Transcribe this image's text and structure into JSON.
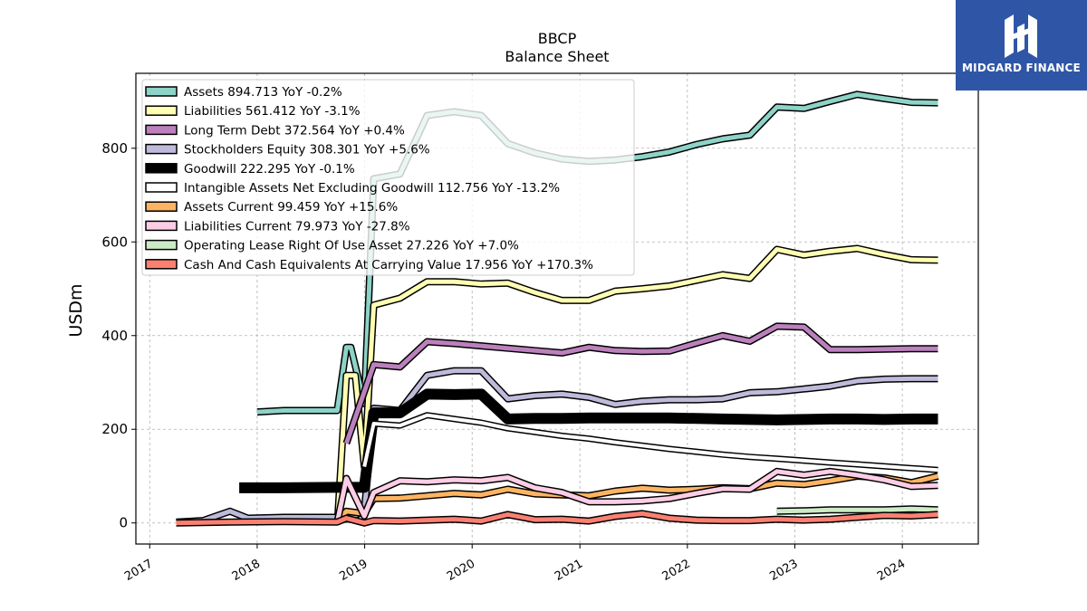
{
  "brand": {
    "name": "MIDGARD FINANCE",
    "bg_color": "#2f56a6"
  },
  "chart_data": {
    "type": "line",
    "title": "BBCP",
    "subtitle": "Balance  Sheet",
    "xlabel": "",
    "ylabel": "USDm",
    "xlim": [
      "2016-11-15",
      "2024-09-15"
    ],
    "ylim": [
      -45,
      960
    ],
    "yticks": [
      0,
      200,
      400,
      600,
      800
    ],
    "xticks": [
      "2017",
      "2018",
      "2019",
      "2020",
      "2021",
      "2022",
      "2023",
      "2024"
    ],
    "grid": true,
    "legend_position": "top-left",
    "series": [
      {
        "name": "Assets",
        "legend": "Assets  894.713 YoY -0.2%",
        "color": "#8dd3c7",
        "width": 5,
        "points": [
          [
            "2018-01-01",
            237
          ],
          [
            "2018-04-01",
            240
          ],
          [
            "2018-07-01",
            240
          ],
          [
            "2018-09-30",
            240
          ],
          [
            "2018-10-31",
            375
          ],
          [
            "2018-11-15",
            375
          ],
          [
            "2018-12-31",
            255
          ],
          [
            "2019-02-01",
            735
          ],
          [
            "2019-05-01",
            745
          ],
          [
            "2019-08-01",
            870
          ],
          [
            "2019-11-01",
            878
          ],
          [
            "2020-02-01",
            870
          ],
          [
            "2020-05-01",
            810
          ],
          [
            "2020-08-01",
            790
          ],
          [
            "2020-11-01",
            777
          ],
          [
            "2021-02-01",
            772
          ],
          [
            "2021-05-01",
            775
          ],
          [
            "2021-08-01",
            782
          ],
          [
            "2021-11-01",
            792
          ],
          [
            "2022-02-01",
            808
          ],
          [
            "2022-05-01",
            820
          ],
          [
            "2022-08-01",
            828
          ],
          [
            "2022-11-01",
            888
          ],
          [
            "2023-02-01",
            885
          ],
          [
            "2023-05-01",
            900
          ],
          [
            "2023-08-01",
            915
          ],
          [
            "2023-11-01",
            906
          ],
          [
            "2024-02-01",
            898
          ],
          [
            "2024-05-01",
            897
          ]
        ]
      },
      {
        "name": "Liabilities",
        "legend": "Liabilities  561.412 YoY -3.1%",
        "color": "#ffffb3",
        "width": 5,
        "points": [
          [
            "2018-10-01",
            5
          ],
          [
            "2018-10-31",
            315
          ],
          [
            "2018-11-30",
            315
          ],
          [
            "2018-12-31",
            120
          ],
          [
            "2019-02-01",
            465
          ],
          [
            "2019-05-01",
            480
          ],
          [
            "2019-08-01",
            515
          ],
          [
            "2019-11-01",
            515
          ],
          [
            "2020-02-01",
            510
          ],
          [
            "2020-05-01",
            512
          ],
          [
            "2020-08-01",
            492
          ],
          [
            "2020-11-01",
            475
          ],
          [
            "2021-02-01",
            475
          ],
          [
            "2021-05-01",
            495
          ],
          [
            "2021-08-01",
            500
          ],
          [
            "2021-11-01",
            506
          ],
          [
            "2022-02-01",
            518
          ],
          [
            "2022-05-01",
            530
          ],
          [
            "2022-08-01",
            522
          ],
          [
            "2022-11-01",
            584
          ],
          [
            "2023-02-01",
            572
          ],
          [
            "2023-05-01",
            580
          ],
          [
            "2023-08-01",
            586
          ],
          [
            "2023-11-01",
            573
          ],
          [
            "2024-02-01",
            562
          ],
          [
            "2024-05-01",
            561
          ]
        ]
      },
      {
        "name": "Long Term Debt",
        "legend": "Long Term Debt  372.564 YoY +0.4%",
        "color": "#bc80bd",
        "width": 5,
        "points": [
          [
            "2018-10-31",
            170
          ],
          [
            "2019-02-01",
            338
          ],
          [
            "2019-05-01",
            333
          ],
          [
            "2019-08-01",
            387
          ],
          [
            "2019-11-01",
            383
          ],
          [
            "2020-02-01",
            378
          ],
          [
            "2020-05-01",
            373
          ],
          [
            "2020-08-01",
            368
          ],
          [
            "2020-11-01",
            363
          ],
          [
            "2021-02-01",
            375
          ],
          [
            "2021-05-01",
            368
          ],
          [
            "2021-08-01",
            366
          ],
          [
            "2021-11-01",
            367
          ],
          [
            "2022-02-01",
            384
          ],
          [
            "2022-05-01",
            400
          ],
          [
            "2022-08-01",
            388
          ],
          [
            "2022-11-01",
            420
          ],
          [
            "2023-02-01",
            418
          ],
          [
            "2023-05-01",
            370
          ],
          [
            "2023-08-01",
            370
          ],
          [
            "2023-11-01",
            371
          ],
          [
            "2024-02-01",
            372
          ],
          [
            "2024-05-01",
            372
          ]
        ]
      },
      {
        "name": "Stockholders Equity",
        "legend": "Stockholders Equity  308.301 YoY +5.6%",
        "color": "#bebada",
        "width": 5,
        "points": [
          [
            "2017-04-01",
            2
          ],
          [
            "2017-07-01",
            5
          ],
          [
            "2017-10-01",
            25
          ],
          [
            "2017-11-30",
            10
          ],
          [
            "2018-04-01",
            12
          ],
          [
            "2018-09-30",
            12
          ],
          [
            "2018-10-31",
            8
          ],
          [
            "2018-12-31",
            25
          ],
          [
            "2019-02-01",
            245
          ],
          [
            "2019-05-01",
            240
          ],
          [
            "2019-08-01",
            315
          ],
          [
            "2019-11-01",
            325
          ],
          [
            "2020-02-01",
            325
          ],
          [
            "2020-05-01",
            265
          ],
          [
            "2020-08-01",
            272
          ],
          [
            "2020-11-01",
            275
          ],
          [
            "2021-02-01",
            268
          ],
          [
            "2021-05-01",
            253
          ],
          [
            "2021-08-01",
            260
          ],
          [
            "2021-11-01",
            263
          ],
          [
            "2022-02-01",
            263
          ],
          [
            "2022-05-01",
            265
          ],
          [
            "2022-08-01",
            278
          ],
          [
            "2022-11-01",
            280
          ],
          [
            "2023-02-01",
            286
          ],
          [
            "2023-05-01",
            292
          ],
          [
            "2023-08-01",
            303
          ],
          [
            "2023-11-01",
            307
          ],
          [
            "2024-02-01",
            308
          ],
          [
            "2024-05-01",
            308
          ]
        ]
      },
      {
        "name": "Goodwill",
        "legend": "Goodwill  222.295 YoY -0.1%",
        "color": "#000000",
        "width": 9,
        "points": [
          [
            "2017-11-01",
            75
          ],
          [
            "2018-04-01",
            75
          ],
          [
            "2018-09-30",
            76
          ],
          [
            "2018-12-31",
            76
          ],
          [
            "2019-02-01",
            235
          ],
          [
            "2019-05-01",
            235
          ],
          [
            "2019-08-01",
            275
          ],
          [
            "2019-11-01",
            274
          ],
          [
            "2020-02-01",
            275
          ],
          [
            "2020-05-01",
            222
          ],
          [
            "2020-08-01",
            223
          ],
          [
            "2020-11-01",
            223
          ],
          [
            "2021-02-01",
            224
          ],
          [
            "2021-05-01",
            224
          ],
          [
            "2021-08-01",
            224
          ],
          [
            "2021-11-01",
            224
          ],
          [
            "2022-02-01",
            223
          ],
          [
            "2022-05-01",
            222
          ],
          [
            "2022-08-01",
            221
          ],
          [
            "2022-11-01",
            220
          ],
          [
            "2023-02-01",
            221
          ],
          [
            "2023-05-01",
            222
          ],
          [
            "2023-08-01",
            222
          ],
          [
            "2023-11-01",
            221
          ],
          [
            "2024-02-01",
            222
          ],
          [
            "2024-05-01",
            222
          ]
        ]
      },
      {
        "name": "Intangible Assets Net Excluding Goodwill",
        "legend": "Intangible Assets Net Excluding Goodwill  112.756 YoY -13.2%",
        "color": "#ffffff",
        "width": 4,
        "points": [
          [
            "2018-12-31",
            120
          ],
          [
            "2019-02-01",
            212
          ],
          [
            "2019-05-01",
            208
          ],
          [
            "2019-08-01",
            230
          ],
          [
            "2019-11-01",
            222
          ],
          [
            "2020-02-01",
            214
          ],
          [
            "2020-05-01",
            202
          ],
          [
            "2020-08-01",
            194
          ],
          [
            "2020-11-01",
            186
          ],
          [
            "2021-02-01",
            180
          ],
          [
            "2021-05-01",
            172
          ],
          [
            "2021-08-01",
            165
          ],
          [
            "2021-11-01",
            158
          ],
          [
            "2022-02-01",
            152
          ],
          [
            "2022-05-01",
            146
          ],
          [
            "2022-08-01",
            141
          ],
          [
            "2022-11-01",
            137
          ],
          [
            "2023-02-01",
            133
          ],
          [
            "2023-05-01",
            129
          ],
          [
            "2023-08-01",
            125
          ],
          [
            "2023-11-01",
            121
          ],
          [
            "2024-02-01",
            117
          ],
          [
            "2024-05-01",
            113
          ]
        ]
      },
      {
        "name": "Assets Current",
        "legend": "Assets Current  99.459 YoY +15.6%",
        "color": "#fdb462",
        "width": 5,
        "points": [
          [
            "2018-10-01",
            5
          ],
          [
            "2018-10-31",
            25
          ],
          [
            "2018-12-31",
            20
          ],
          [
            "2019-02-01",
            52
          ],
          [
            "2019-05-01",
            53
          ],
          [
            "2019-08-01",
            58
          ],
          [
            "2019-11-01",
            63
          ],
          [
            "2020-02-01",
            60
          ],
          [
            "2020-05-01",
            72
          ],
          [
            "2020-08-01",
            62
          ],
          [
            "2020-11-01",
            60
          ],
          [
            "2021-02-01",
            58
          ],
          [
            "2021-05-01",
            68
          ],
          [
            "2021-08-01",
            74
          ],
          [
            "2021-11-01",
            70
          ],
          [
            "2022-02-01",
            72
          ],
          [
            "2022-05-01",
            75
          ],
          [
            "2022-08-01",
            73
          ],
          [
            "2022-11-01",
            85
          ],
          [
            "2023-02-01",
            82
          ],
          [
            "2023-05-01",
            90
          ],
          [
            "2023-08-01",
            100
          ],
          [
            "2023-11-01",
            96
          ],
          [
            "2024-02-01",
            86
          ],
          [
            "2024-05-01",
            100
          ]
        ]
      },
      {
        "name": "Liabilities Current",
        "legend": "Liabilities Current  79.973 YoY -27.8%",
        "color": "#fccde5",
        "width": 5,
        "points": [
          [
            "2018-10-01",
            5
          ],
          [
            "2018-10-31",
            95
          ],
          [
            "2018-12-31",
            15
          ],
          [
            "2019-02-01",
            65
          ],
          [
            "2019-05-01",
            90
          ],
          [
            "2019-08-01",
            88
          ],
          [
            "2019-11-01",
            92
          ],
          [
            "2020-02-01",
            90
          ],
          [
            "2020-05-01",
            97
          ],
          [
            "2020-08-01",
            75
          ],
          [
            "2020-11-01",
            65
          ],
          [
            "2021-02-01",
            45
          ],
          [
            "2021-05-01",
            45
          ],
          [
            "2021-08-01",
            47
          ],
          [
            "2021-11-01",
            52
          ],
          [
            "2022-02-01",
            63
          ],
          [
            "2022-05-01",
            73
          ],
          [
            "2022-08-01",
            72
          ],
          [
            "2022-11-01",
            110
          ],
          [
            "2023-02-01",
            102
          ],
          [
            "2023-05-01",
            110
          ],
          [
            "2023-08-01",
            102
          ],
          [
            "2023-11-01",
            92
          ],
          [
            "2024-02-01",
            78
          ],
          [
            "2024-05-01",
            80
          ]
        ]
      },
      {
        "name": "Operating Lease Right Of Use Asset",
        "legend": "Operating Lease Right Of Use Asset  27.226 YoY +7.0%",
        "color": "#ccebc5",
        "width": 5,
        "points": [
          [
            "2022-11-01",
            25
          ],
          [
            "2023-02-01",
            26
          ],
          [
            "2023-05-01",
            28
          ],
          [
            "2023-08-01",
            28
          ],
          [
            "2023-11-01",
            28
          ],
          [
            "2024-02-01",
            30
          ],
          [
            "2024-05-01",
            28
          ]
        ]
      },
      {
        "name": "Cash And Cash Equivalents At Carrying Value",
        "legend": "Cash And Cash Equivalents At Carrying Value  17.956 YoY +170.3%",
        "color": "#fb8072",
        "width": 5,
        "points": [
          [
            "2017-04-01",
            0
          ],
          [
            "2017-10-01",
            2
          ],
          [
            "2018-04-01",
            3
          ],
          [
            "2018-09-30",
            2
          ],
          [
            "2018-10-31",
            10
          ],
          [
            "2018-12-31",
            0
          ],
          [
            "2019-02-01",
            5
          ],
          [
            "2019-05-01",
            4
          ],
          [
            "2019-08-01",
            6
          ],
          [
            "2019-11-01",
            8
          ],
          [
            "2020-02-01",
            4
          ],
          [
            "2020-05-01",
            18
          ],
          [
            "2020-08-01",
            7
          ],
          [
            "2020-11-01",
            8
          ],
          [
            "2021-02-01",
            4
          ],
          [
            "2021-05-01",
            14
          ],
          [
            "2021-08-01",
            20
          ],
          [
            "2021-11-01",
            10
          ],
          [
            "2022-02-01",
            6
          ],
          [
            "2022-05-01",
            5
          ],
          [
            "2022-08-01",
            5
          ],
          [
            "2022-11-01",
            8
          ],
          [
            "2023-02-01",
            6
          ],
          [
            "2023-05-01",
            8
          ],
          [
            "2023-08-01",
            12
          ],
          [
            "2023-11-01",
            16
          ],
          [
            "2024-02-01",
            15
          ],
          [
            "2024-05-01",
            18
          ]
        ]
      }
    ]
  }
}
